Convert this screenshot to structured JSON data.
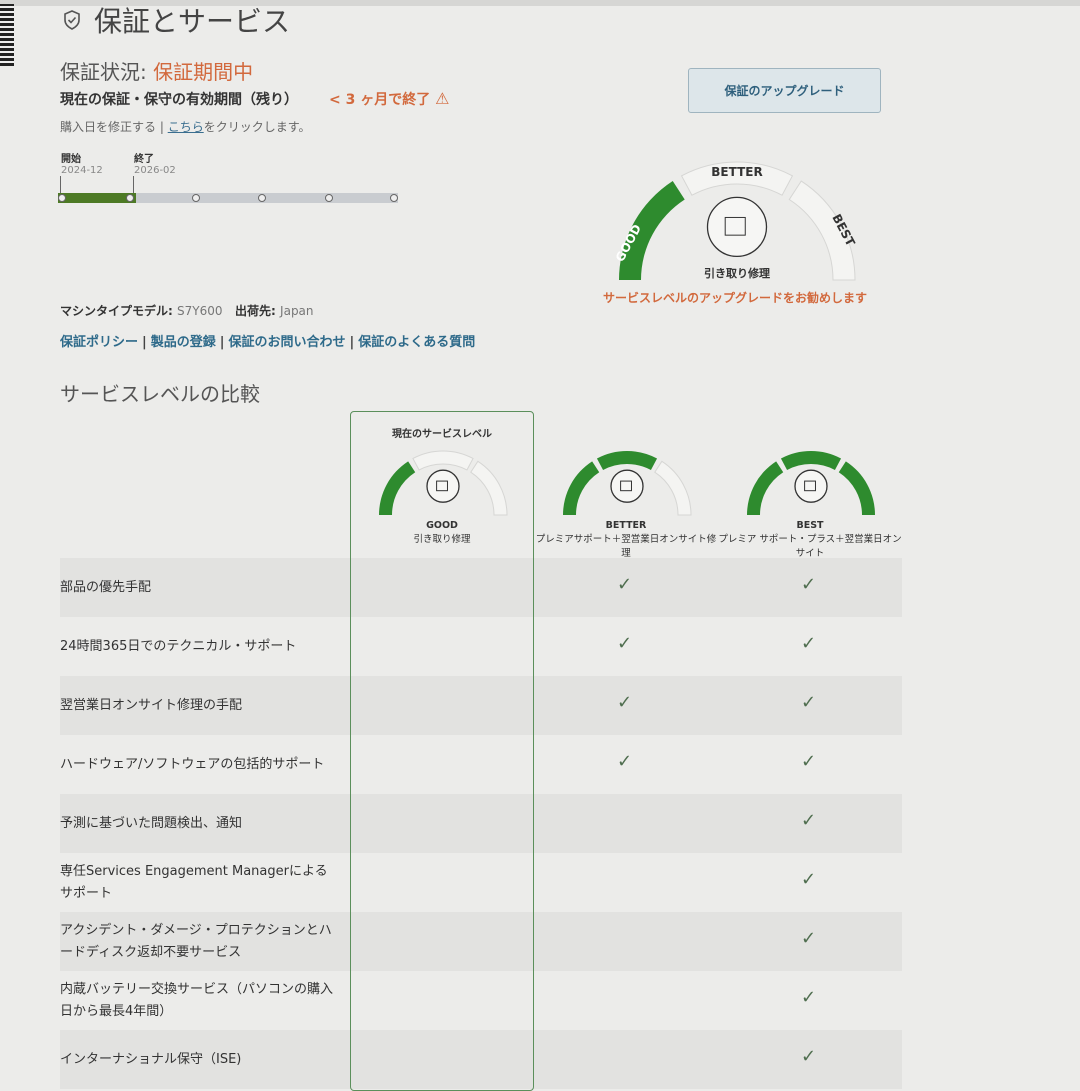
{
  "header": {
    "title": "保証とサービス",
    "icon": "shield-check-icon"
  },
  "warranty": {
    "status_label": "保証状況: ",
    "status_value": "保証期間中",
    "period_label": "現在の保証・保守の有効期間（残り）",
    "remaining": "< 3 ヶ月で終了",
    "fix_text": "購入日を修正する | ",
    "fix_link": "こちら",
    "fix_suffix": "をクリックします。",
    "start_label": "開始",
    "start_date": "2024-12",
    "end_label": "終了",
    "end_date": "2026-02",
    "timeline_progress_segments": "1 of 5",
    "upgrade_button": "保証のアップグレード"
  },
  "gauge": {
    "levels": [
      "GOOD",
      "BETTER",
      "BEST"
    ],
    "current_level": 1,
    "service": "引き取り修理",
    "recommend": "サービスレベルのアップグレードをお勧めします",
    "color": "#2e8b2e"
  },
  "machine": {
    "type_label": "マシンタイプモデル:",
    "type_value": "S7Y600",
    "ship_label": "出荷先:",
    "ship_value": "Japan"
  },
  "links": [
    "保証ポリシー",
    "製品の登録",
    "保証のお問い合わせ",
    "保証のよくある質問"
  ],
  "comparison": {
    "title": "サービスレベルの比較",
    "current_header": "現在のサービスレベル",
    "columns": [
      {
        "level": "GOOD",
        "name": "引き取り修理",
        "filled": 1
      },
      {
        "level": "BETTER",
        "name": "プレミアサポート＋翌営業日オンサイト修理",
        "filled": 2
      },
      {
        "level": "BEST",
        "name": "プレミア サポート・プラス＋翌営業日オンサイト",
        "filled": 3
      }
    ],
    "rows": [
      {
        "label": "部品の優先手配",
        "better": true,
        "best": true
      },
      {
        "label": "24時間365日でのテクニカル・サポート",
        "better": true,
        "best": true
      },
      {
        "label": "翌営業日オンサイト修理の手配",
        "better": true,
        "best": true
      },
      {
        "label": "ハードウェア/ソフトウェアの包括的サポート",
        "better": true,
        "best": true
      },
      {
        "label": "予測に基づいた問題検出、通知",
        "better": false,
        "best": true
      },
      {
        "label": "専任Services Engagement Managerによるサポート",
        "better": false,
        "best": true
      },
      {
        "label": "アクシデント・ダメージ・プロテクションとハードディスク返却不要サービス",
        "better": false,
        "best": true
      },
      {
        "label": "内蔵バッテリー交換サービス（パソコンの購入日から最長4年間）",
        "better": false,
        "best": true
      },
      {
        "label": "インターナショナル保守（ISE)",
        "better": false,
        "best": true
      }
    ],
    "check_symbol": "✓"
  }
}
